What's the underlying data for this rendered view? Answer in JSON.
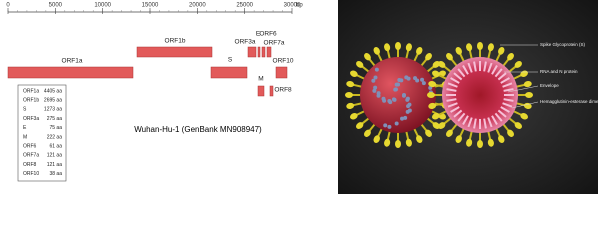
{
  "ruler": {
    "ticks": [
      0,
      5000,
      10000,
      15000,
      20000,
      25000,
      30000
    ],
    "unit": "bp"
  },
  "genes": [
    "ORF1a",
    "ORF1b",
    "S",
    "ORF3a",
    "E",
    "ORF6",
    "ORF7a",
    "M",
    "ORF8",
    "ORF10"
  ],
  "caption": "Wuhan-Hu-1 (GenBank MN908947)",
  "table": {
    "rows": [
      [
        "ORF1a",
        "4405 aa"
      ],
      [
        "ORF1b",
        "2695 aa"
      ],
      [
        "S",
        "1273 aa"
      ],
      [
        "ORF3a",
        "275 aa"
      ],
      [
        "E",
        "75 aa"
      ],
      [
        "M",
        "222 aa"
      ],
      [
        "ORF6",
        "61 aa"
      ],
      [
        "ORF7a",
        "121 aa"
      ],
      [
        "ORF8",
        "121 aa"
      ],
      [
        "ORF10",
        "38 aa"
      ]
    ]
  },
  "illustration": {
    "labels": [
      "Spike Glycoprotein (S)",
      "RNA and N protein",
      "Envelope",
      "Hemagglutinin-esterase dimer (HE)"
    ]
  }
}
